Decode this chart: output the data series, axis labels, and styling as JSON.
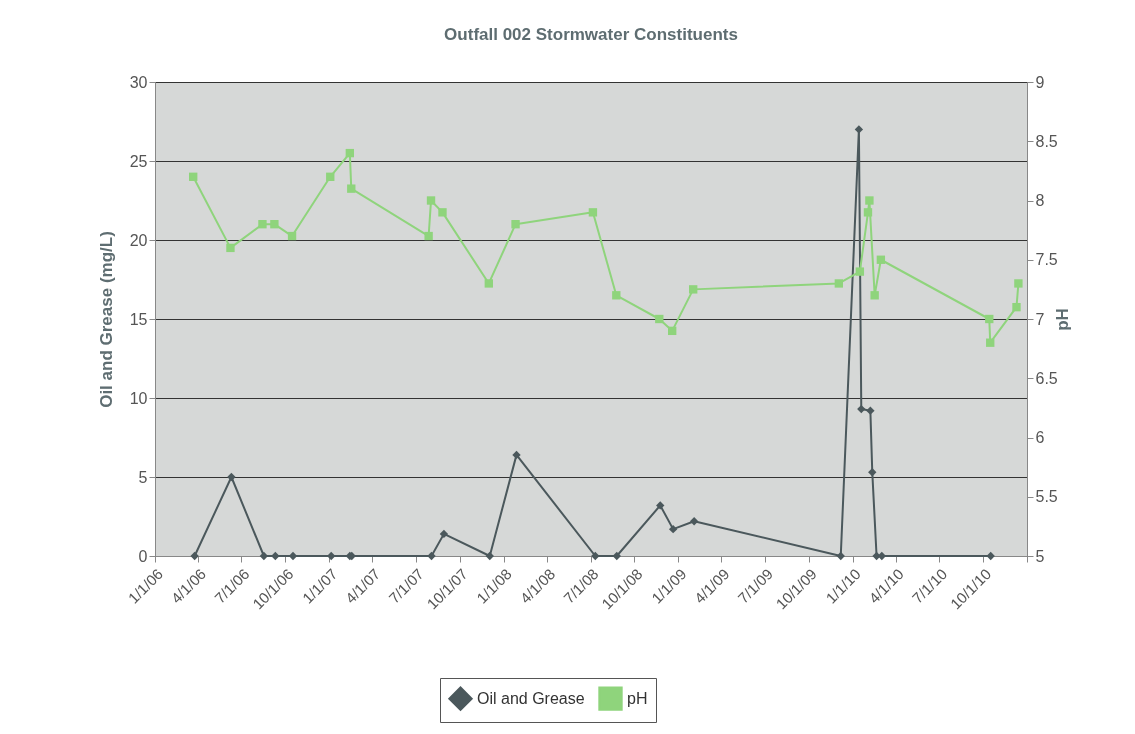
{
  "chart_data": {
    "type": "line",
    "title": "Outfall 002 Stormwater Constituents",
    "ylabel": "Oil and Grease (mg/L)",
    "y2label": "pH",
    "xlim": [
      "2006-01-01",
      "2011-01-01"
    ],
    "xticks": [
      {
        "value": "2006-01-01",
        "label": "1/1/06"
      },
      {
        "value": "2006-04-01",
        "label": "4/1/06"
      },
      {
        "value": "2006-07-01",
        "label": "7/1/06"
      },
      {
        "value": "2006-10-01",
        "label": "10/1/06"
      },
      {
        "value": "2007-01-01",
        "label": "1/1/07"
      },
      {
        "value": "2007-04-01",
        "label": "4/1/07"
      },
      {
        "value": "2007-07-01",
        "label": "7/1/07"
      },
      {
        "value": "2007-10-01",
        "label": "10/1/07"
      },
      {
        "value": "2008-01-01",
        "label": "1/1/08"
      },
      {
        "value": "2008-04-01",
        "label": "4/1/08"
      },
      {
        "value": "2008-07-01",
        "label": "7/1/08"
      },
      {
        "value": "2008-10-01",
        "label": "10/1/08"
      },
      {
        "value": "2009-01-01",
        "label": "1/1/09"
      },
      {
        "value": "2009-04-01",
        "label": "4/1/09"
      },
      {
        "value": "2009-07-01",
        "label": "7/1/09"
      },
      {
        "value": "2009-10-01",
        "label": "10/1/09"
      },
      {
        "value": "2010-01-01",
        "label": "1/1/10"
      },
      {
        "value": "2010-04-01",
        "label": "4/1/10"
      },
      {
        "value": "2010-07-01",
        "label": "7/1/10"
      },
      {
        "value": "2010-10-01",
        "label": "10/1/10"
      },
      {
        "value": "2011-01-01",
        "label": null
      }
    ],
    "ylim": [
      0,
      30
    ],
    "yticks": [
      0,
      5,
      10,
      15,
      20,
      25,
      30
    ],
    "y2lim": [
      5,
      9
    ],
    "y2ticks": [
      5,
      5.5,
      6,
      6.5,
      7,
      7.5,
      8,
      8.5,
      9
    ],
    "grid": "y",
    "legend": "bottom",
    "line_style": "solid",
    "series": [
      {
        "name": "Oil and Grease",
        "color": "#4b585c",
        "marker": "diamond",
        "x": [
          "2006-03-25",
          "2006-06-10",
          "2006-08-17",
          "2006-09-10",
          "2006-10-17",
          "2007-01-05",
          "2007-02-13",
          "2007-02-17",
          "2007-08-03",
          "2007-08-29",
          "2007-12-03",
          "2008-01-28",
          "2008-07-11",
          "2008-08-25",
          "2008-11-24",
          "2008-12-21",
          "2009-02-03",
          "2009-12-07",
          "2010-01-14",
          "2010-01-19",
          "2010-02-07",
          "2010-02-11",
          "2010-02-20",
          "2010-03-03",
          "2010-10-17"
        ],
        "values": [
          0,
          5,
          0,
          0,
          0,
          0,
          0,
          0,
          0,
          1.4,
          0,
          6.4,
          0,
          0,
          3.2,
          1.7,
          2.2,
          0,
          27,
          9.3,
          9.2,
          5.3,
          0,
          0,
          0
        ]
      },
      {
        "name": "pH",
        "color": "#8fd47c",
        "marker": "square",
        "axis": "y2",
        "x": [
          "2006-03-22",
          "2006-06-08",
          "2006-08-14",
          "2006-09-08",
          "2006-10-15",
          "2007-01-03",
          "2007-02-13",
          "2007-02-16",
          "2007-07-28",
          "2007-08-02",
          "2007-08-26",
          "2007-12-01",
          "2008-01-26",
          "2008-07-06",
          "2008-08-24",
          "2008-11-22",
          "2008-12-19",
          "2009-02-01",
          "2009-12-03",
          "2010-01-16",
          "2010-02-02",
          "2010-02-05",
          "2010-02-16",
          "2010-03-01",
          "2010-10-14",
          "2010-10-16",
          "2010-12-10",
          "2010-12-14"
        ],
        "values": [
          8.2,
          7.6,
          7.8,
          7.8,
          7.7,
          8.2,
          8.4,
          8.1,
          7.7,
          8.0,
          7.9,
          7.3,
          7.8,
          7.9,
          7.2,
          7.0,
          6.9,
          7.25,
          7.3,
          7.4,
          7.9,
          8.0,
          7.2,
          7.5,
          7.0,
          6.8,
          7.1,
          7.3
        ]
      }
    ]
  }
}
